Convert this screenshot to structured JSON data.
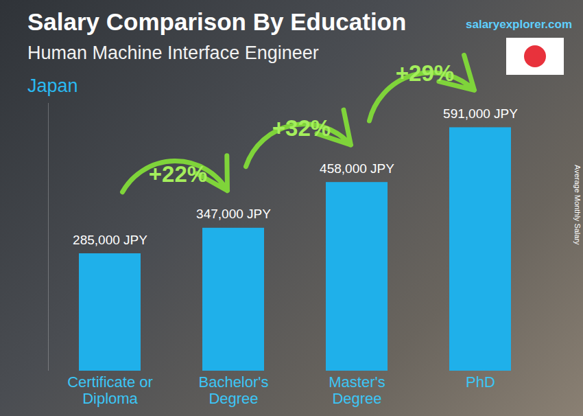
{
  "chart_data": {
    "type": "bar",
    "title": "Salary Comparison By Education",
    "subtitle": "Human Machine Interface Engineer",
    "region": "Japan",
    "source": "salaryexplorer.com",
    "ylabel": "Average Monthly Salary",
    "categories": [
      "Certificate or Diploma",
      "Bachelor's Degree",
      "Master's Degree",
      "PhD"
    ],
    "values": [
      285000,
      347000,
      458000,
      591000
    ],
    "value_labels": [
      "285,000 JPY",
      "347,000 JPY",
      "458,000 JPY",
      "591,000 JPY"
    ],
    "annotations": [
      "+22%",
      "+32%",
      "+29%"
    ],
    "color": "#1fb0ea",
    "ylim": [
      0,
      650000
    ],
    "data_labels": true,
    "tick_labels": "x",
    "grid": false
  }
}
